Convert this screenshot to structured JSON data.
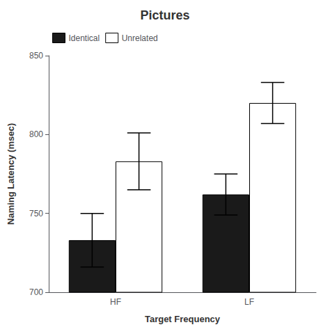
{
  "chart_data": {
    "type": "bar",
    "title": "Pictures",
    "xlabel": "Target Frequency",
    "ylabel": "Naming Latency (msec)",
    "categories": [
      "HF",
      "LF"
    ],
    "series": [
      {
        "name": "Identical",
        "color": "#1a1a1a",
        "values": [
          733,
          762
        ],
        "errors": [
          17,
          13
        ]
      },
      {
        "name": "Unrelated",
        "color": "#ffffff",
        "values": [
          783,
          820
        ],
        "errors": [
          18,
          13
        ]
      }
    ],
    "ylim": [
      700,
      850
    ],
    "yticks": [
      700,
      750,
      800,
      850
    ],
    "legend": "upper left",
    "grid": false
  }
}
